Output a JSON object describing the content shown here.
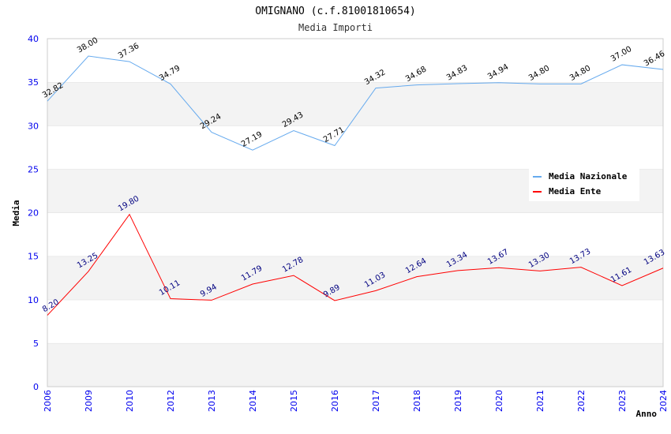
{
  "chart_data": {
    "type": "line",
    "title": "OMIGNANO (c.f.81001810654)",
    "subtitle": "Media Importi",
    "xlabel": "Anno",
    "ylabel": "Media",
    "ylim": [
      0,
      40
    ],
    "yticks": [
      "0",
      "5",
      "10",
      "15",
      "20",
      "25",
      "30",
      "35",
      "40"
    ],
    "categories": [
      "2006",
      "2009",
      "2010",
      "2012",
      "2013",
      "2014",
      "2015",
      "2016",
      "2017",
      "2018",
      "2019",
      "2020",
      "2021",
      "2022",
      "2023",
      "2024"
    ],
    "series": [
      {
        "name": "Media Nazionale",
        "color": "#66aaee",
        "label_color": "#000000",
        "values": [
          32.82,
          38.0,
          37.36,
          34.79,
          29.24,
          27.19,
          29.43,
          27.71,
          34.32,
          34.68,
          34.83,
          34.94,
          34.8,
          34.8,
          37.0,
          36.46
        ],
        "labels": [
          "32.82",
          "38.00",
          "37.36",
          "34.79",
          "29.24",
          "27.19",
          "29.43",
          "27.71",
          "34.32",
          "34.68",
          "34.83",
          "34.94",
          "34.80",
          "34.80",
          "37.00",
          "36.46"
        ]
      },
      {
        "name": "Media Ente",
        "color": "#ff0000",
        "label_color": "#000080",
        "values": [
          8.2,
          13.25,
          19.8,
          10.11,
          9.94,
          11.79,
          12.78,
          9.89,
          11.03,
          12.64,
          13.34,
          13.67,
          13.3,
          13.73,
          11.61,
          13.63
        ],
        "labels": [
          "8.20",
          "13.25",
          "19.80",
          "10.11",
          "9.94",
          "11.79",
          "12.78",
          "9.89",
          "11.03",
          "12.64",
          "13.34",
          "13.67",
          "13.30",
          "13.73",
          "11.61",
          "13.63"
        ]
      }
    ],
    "legend": "top-right",
    "grid": true
  }
}
